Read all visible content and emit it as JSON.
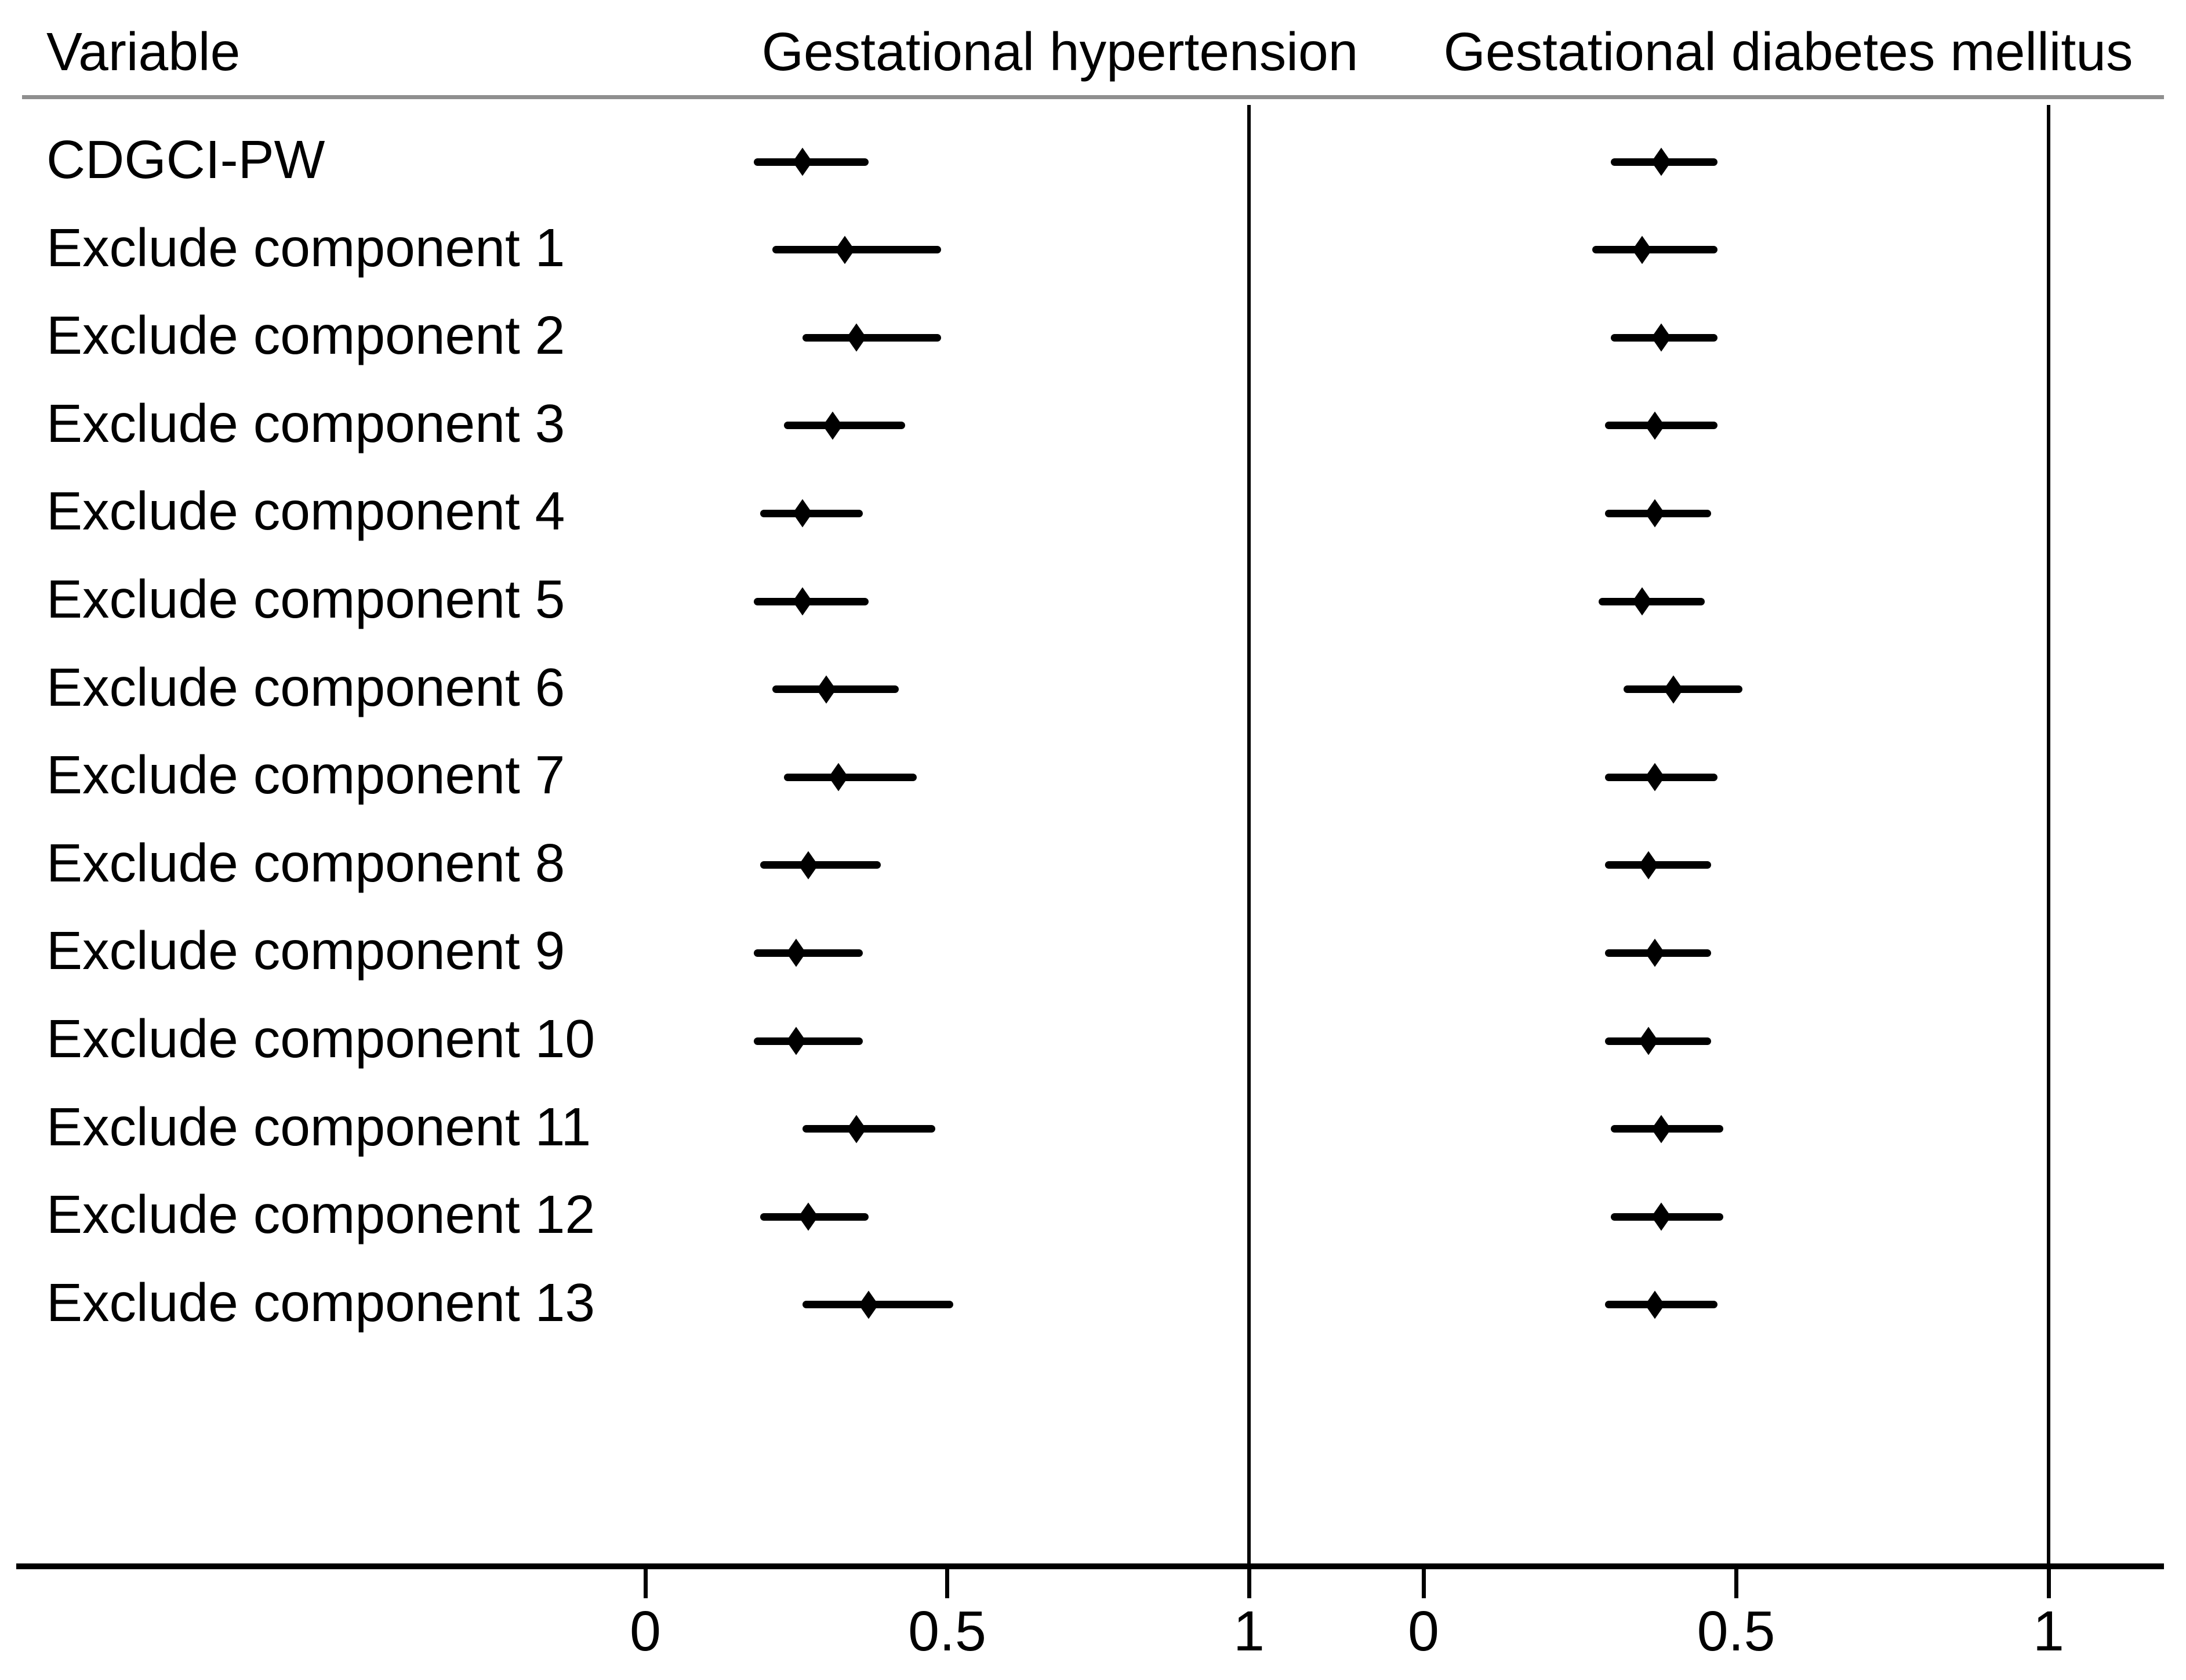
{
  "header": {
    "variable_label": "Variable",
    "panel1_label": "Gestational hypertension",
    "panel2_label": "Gestational diabetes mellitus"
  },
  "chart_data": {
    "type": "forest",
    "orientation": "horizontal",
    "marker": "diamond",
    "variable_column_header": "Variable",
    "categories": [
      "CDGCI-PW",
      "Exclude component 1",
      "Exclude component 2",
      "Exclude component 3",
      "Exclude component 4",
      "Exclude component 5",
      "Exclude component 6",
      "Exclude component 7",
      "Exclude component 8",
      "Exclude component 9",
      "Exclude component 10",
      "Exclude component 11",
      "Exclude component 12",
      "Exclude component 13"
    ],
    "panels": [
      {
        "name": "Gestational hypertension",
        "axis": {
          "ticks": [
            0,
            0.5,
            1
          ],
          "tick_labels": [
            "0",
            "0.5",
            "1"
          ],
          "reference_line": 1
        },
        "estimates": [
          {
            "center": 0.26,
            "low": 0.18,
            "high": 0.37
          },
          {
            "center": 0.33,
            "low": 0.21,
            "high": 0.49
          },
          {
            "center": 0.35,
            "low": 0.26,
            "high": 0.49
          },
          {
            "center": 0.31,
            "low": 0.23,
            "high": 0.43
          },
          {
            "center": 0.26,
            "low": 0.19,
            "high": 0.36
          },
          {
            "center": 0.26,
            "low": 0.18,
            "high": 0.37
          },
          {
            "center": 0.3,
            "low": 0.21,
            "high": 0.42
          },
          {
            "center": 0.32,
            "low": 0.23,
            "high": 0.45
          },
          {
            "center": 0.27,
            "low": 0.19,
            "high": 0.39
          },
          {
            "center": 0.25,
            "low": 0.18,
            "high": 0.36
          },
          {
            "center": 0.25,
            "low": 0.18,
            "high": 0.36
          },
          {
            "center": 0.35,
            "low": 0.26,
            "high": 0.48
          },
          {
            "center": 0.27,
            "low": 0.19,
            "high": 0.37
          },
          {
            "center": 0.37,
            "low": 0.26,
            "high": 0.51
          }
        ]
      },
      {
        "name": "Gestational diabetes mellitus",
        "axis": {
          "ticks": [
            0,
            0.5,
            1
          ],
          "tick_labels": [
            "0",
            "0.5",
            "1"
          ],
          "reference_line": 1
        },
        "estimates": [
          {
            "center": 0.38,
            "low": 0.3,
            "high": 0.47
          },
          {
            "center": 0.35,
            "low": 0.27,
            "high": 0.47
          },
          {
            "center": 0.38,
            "low": 0.3,
            "high": 0.47
          },
          {
            "center": 0.37,
            "low": 0.29,
            "high": 0.47
          },
          {
            "center": 0.37,
            "low": 0.29,
            "high": 0.46
          },
          {
            "center": 0.35,
            "low": 0.28,
            "high": 0.45
          },
          {
            "center": 0.4,
            "low": 0.32,
            "high": 0.51
          },
          {
            "center": 0.37,
            "low": 0.29,
            "high": 0.47
          },
          {
            "center": 0.36,
            "low": 0.29,
            "high": 0.46
          },
          {
            "center": 0.37,
            "low": 0.29,
            "high": 0.46
          },
          {
            "center": 0.36,
            "low": 0.29,
            "high": 0.46
          },
          {
            "center": 0.38,
            "low": 0.3,
            "high": 0.48
          },
          {
            "center": 0.38,
            "low": 0.3,
            "high": 0.48
          },
          {
            "center": 0.37,
            "low": 0.29,
            "high": 0.47
          }
        ]
      }
    ],
    "colors": {
      "background": "#ffffff",
      "text": "#000000",
      "axis": "#000000",
      "ci": "#000000",
      "marker": "#000000",
      "header_rule": "#8f8f8f"
    }
  }
}
